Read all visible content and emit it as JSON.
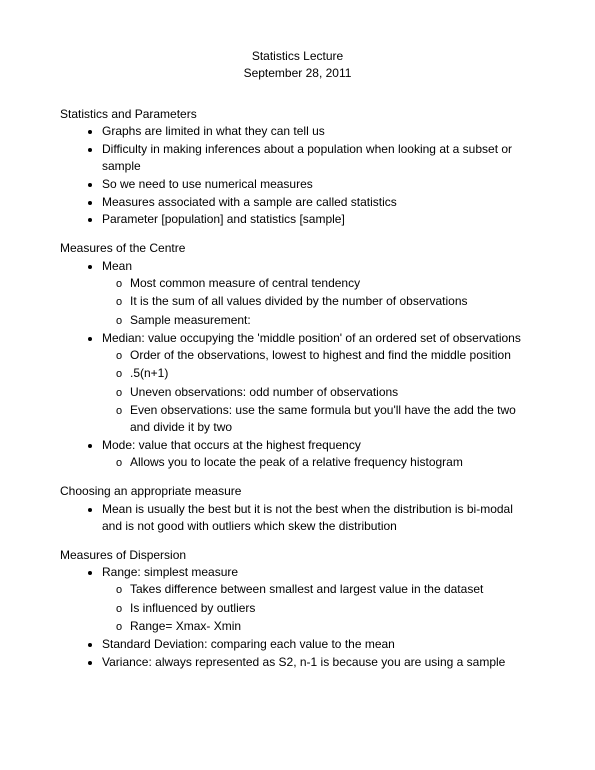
{
  "header": {
    "title": "Statistics Lecture",
    "date": "September 28, 2011"
  },
  "sections": {
    "s1": {
      "heading": "Statistics and Parameters",
      "items": [
        "Graphs are limited in what they can tell us",
        "Difficulty in making inferences about a population when looking at a subset or sample",
        "So we need to use numerical measures",
        "Measures associated with a sample are called statistics",
        "Parameter [population] and statistics [sample]"
      ]
    },
    "s2": {
      "heading": "Measures of the Centre",
      "mean": {
        "label": "Mean",
        "subs": [
          "Most common measure of central tendency",
          "It is the sum of all values divided by the number of observations",
          "Sample measurement:"
        ]
      },
      "median": {
        "label": "Median: value occupying the 'middle position' of an ordered set of observations",
        "subs": [
          "Order of the observations, lowest to highest and find the middle position",
          ".5(n+1)",
          "Uneven observations: odd number of observations",
          "Even observations: use the same formula but you'll have the add the two and divide it by two"
        ]
      },
      "mode": {
        "label": "Mode: value that occurs at the highest frequency",
        "subs": [
          "Allows you to locate the peak of a relative frequency histogram"
        ]
      }
    },
    "s3": {
      "heading": "Choosing an appropriate measure",
      "items": [
        "Mean is usually the best but it is not the best when the distribution is bi-modal and is not good with outliers which skew the distribution"
      ]
    },
    "s4": {
      "heading": "Measures of Dispersion",
      "range": {
        "label": "Range: simplest measure",
        "subs": [
          "Takes difference between smallest and largest value in the dataset",
          "Is influenced by outliers",
          "Range= Xmax- Xmin"
        ]
      },
      "stddev": {
        "label": "Standard Deviation: comparing each value to the mean"
      },
      "variance": {
        "label": "Variance: always represented as S2, n-1 is because you are using a sample"
      }
    }
  }
}
